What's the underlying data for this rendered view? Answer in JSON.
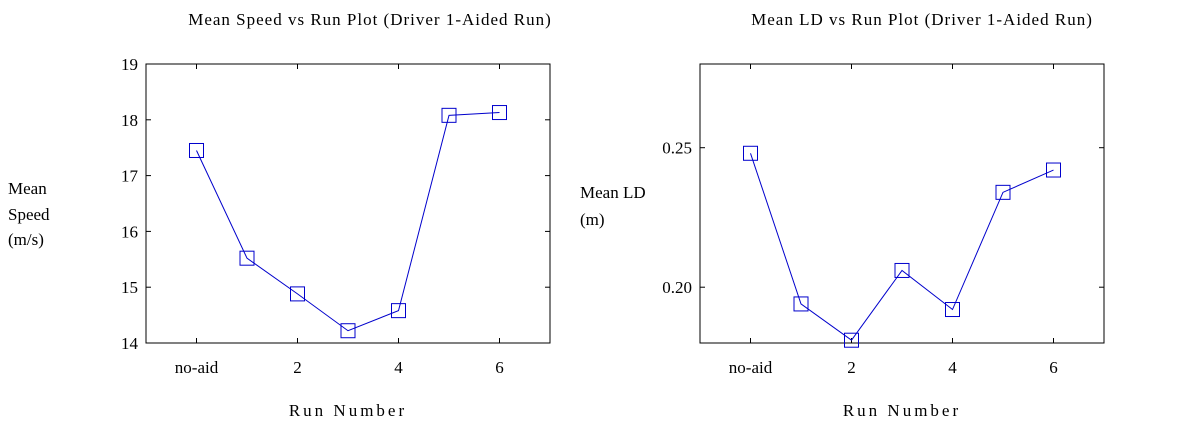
{
  "chart_data": [
    {
      "type": "line",
      "title": "Mean Speed vs Run Plot (Driver 1-Aided Run)",
      "xlabel": "Run Number",
      "ylabel_lines": [
        "Mean",
        "Speed",
        "(m/s)"
      ],
      "x": [
        1,
        2,
        3,
        4,
        5,
        6,
        7
      ],
      "x_ticks": [
        1,
        3,
        5,
        7
      ],
      "x_tick_labels": [
        "no-aid",
        "2",
        "4",
        "6"
      ],
      "xlim": [
        0,
        8
      ],
      "ylim": [
        14,
        19
      ],
      "y_ticks": [
        14,
        15,
        16,
        17,
        18,
        19
      ],
      "y_tick_labels": [
        "14",
        "15",
        "16",
        "17",
        "18",
        "19"
      ],
      "series": [
        {
          "values": [
            17.45,
            15.52,
            14.88,
            14.22,
            14.58,
            18.08,
            18.13
          ],
          "color": "#0000cc",
          "marker": "square"
        }
      ],
      "grid": false
    },
    {
      "type": "line",
      "title": "Mean LD vs Run Plot (Driver 1-Aided Run)",
      "xlabel": "Run Number",
      "ylabel_lines": [
        "Mean LD",
        "(m)"
      ],
      "x": [
        1,
        2,
        3,
        4,
        5,
        6,
        7
      ],
      "x_ticks": [
        1,
        3,
        5,
        7
      ],
      "x_tick_labels": [
        "no-aid",
        "2",
        "4",
        "6"
      ],
      "xlim": [
        0,
        8
      ],
      "ylim": [
        0.18,
        0.28
      ],
      "y_ticks": [
        0.2,
        0.25
      ],
      "y_tick_labels": [
        "0.20",
        "0.25"
      ],
      "series": [
        {
          "values": [
            0.248,
            0.194,
            0.181,
            0.206,
            0.192,
            0.234,
            0.242
          ],
          "color": "#0000cc",
          "marker": "square"
        }
      ],
      "grid": false
    }
  ]
}
